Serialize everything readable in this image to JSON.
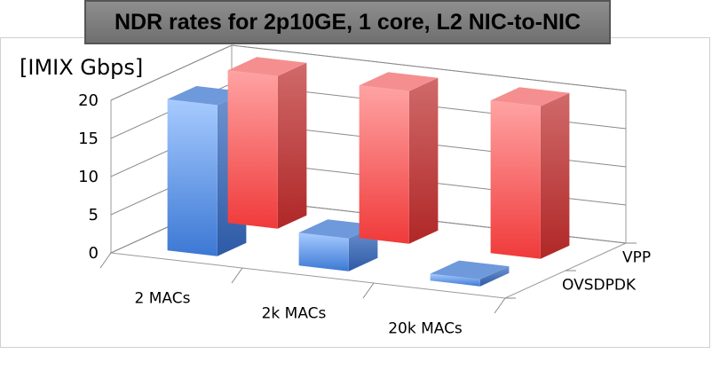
{
  "chart_data": {
    "type": "bar",
    "title": "NDR rates for 2p10GE, 1 core, L2 NIC-to-NIC",
    "ylabel": "[IMIX Gbps]",
    "xlabel": "",
    "ylim": [
      0,
      20
    ],
    "yticks": [
      "0",
      "5",
      "10",
      "15",
      "20"
    ],
    "categories": [
      "2 MACs",
      "2k MACs",
      "20k MACs"
    ],
    "series": [
      {
        "name": "VPP",
        "values": [
          20.0,
          20.0,
          20.0
        ],
        "color": "#ff6b6b"
      },
      {
        "name": "OVSDPDK",
        "values": [
          19.8,
          4.3,
          0.9
        ],
        "color": "#6a9be6"
      }
    ],
    "grid": true,
    "legend": "depth-axis-right"
  }
}
